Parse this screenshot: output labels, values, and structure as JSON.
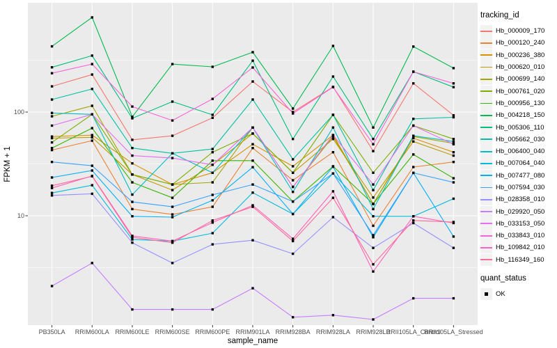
{
  "chart_data": {
    "type": "line",
    "title": "",
    "xlabel": "sample_name",
    "ylabel": "FPKM + 1",
    "y_scale": "log10",
    "ylim": [
      0.88,
      1100
    ],
    "y_ticks": [
      10,
      100
    ],
    "y_tick_labels": [
      "10",
      "100"
    ],
    "y_minor_gridlines": [
      3.1623,
      31.623,
      316.23
    ],
    "categories": [
      "PB350LA",
      "RRIM600LA",
      "RRIM600LE",
      "RRIM600SE",
      "RRIM600PE",
      "RRIM901LA",
      "RRIM928BA",
      "RRIM928LA",
      "RRIM928LB",
      "RRII105LA_Control",
      "RRII105LA_Stressed"
    ],
    "legend_title": "tracking_id",
    "legend_position": "right",
    "panel_bg": "#EBEBEB",
    "grid_color": "#FFFFFF",
    "axis_text_color": "#4D4D4D",
    "tick_color": "#333333",
    "point_marker": "black-square",
    "series": [
      {
        "name": "Hb_000009_170",
        "color": "#F8766D",
        "values": [
          177,
          230,
          54,
          59,
          88,
          197,
          100,
          175,
          42,
          189,
          93
        ]
      },
      {
        "name": "Hb_000120_240",
        "color": "#EA8331",
        "values": [
          43,
          53,
          11.6,
          10.3,
          12.2,
          45,
          22,
          41,
          8,
          29.5,
          33
        ]
      },
      {
        "name": "Hb_000236_380",
        "color": "#D89000",
        "values": [
          58,
          60,
          32,
          20,
          26,
          49,
          30,
          60,
          13,
          56,
          41
        ]
      },
      {
        "name": "Hb_000620_010",
        "color": "#C09B00",
        "values": [
          56,
          57,
          25,
          17.7,
          31,
          62,
          26,
          55,
          15,
          52,
          38
        ]
      },
      {
        "name": "Hb_000699_140",
        "color": "#A3A500",
        "values": [
          91,
          115,
          25,
          20,
          21,
          71,
          19,
          58,
          13,
          58,
          50
        ]
      },
      {
        "name": "Hb_000761_020",
        "color": "#7CAE00",
        "values": [
          51,
          95,
          25,
          20,
          41,
          62,
          26,
          94,
          26,
          74,
          55
        ]
      },
      {
        "name": "Hb_000956_130",
        "color": "#39B600",
        "values": [
          45,
          70,
          21,
          14.9,
          34,
          34,
          13.7,
          30,
          13,
          39,
          23
        ]
      },
      {
        "name": "Hb_004218_150",
        "color": "#00BB4E",
        "values": [
          430,
          818,
          90,
          290,
          273,
          378,
          108,
          434,
          71,
          428,
          265
        ]
      },
      {
        "name": "Hb_005306_110",
        "color": "#00BF7D",
        "values": [
          270,
          350,
          87,
          126,
          94,
          313,
          55,
          220,
          55,
          245,
          174
        ]
      },
      {
        "name": "Hb_005662_030",
        "color": "#00C1A3",
        "values": [
          132,
          167,
          45,
          40,
          44,
          132,
          35,
          94,
          17.7,
          86,
          89
        ]
      },
      {
        "name": "Hb_006400_040",
        "color": "#00BFC4",
        "values": [
          98,
          95,
          16,
          40,
          26,
          71,
          17,
          71,
          11.6,
          59,
          52
        ]
      },
      {
        "name": "Hb_007064_040",
        "color": "#00BBDA",
        "values": [
          16.6,
          19.7,
          5.9,
          5.7,
          6.8,
          16.7,
          10.4,
          25.6,
          9.9,
          9.9,
          14.6
        ]
      },
      {
        "name": "Hb_007477_080",
        "color": "#00B0F6",
        "values": [
          23.4,
          27.3,
          9.9,
          9.7,
          14.1,
          29.4,
          10.4,
          29.7,
          6.2,
          25.9,
          6.3
        ]
      },
      {
        "name": "Hb_007594_030",
        "color": "#35A2FF",
        "values": [
          33,
          30.4,
          13.6,
          12.2,
          15.9,
          20,
          13.7,
          25.6,
          6.5,
          25.9,
          21
        ]
      },
      {
        "name": "Hb_028358_010",
        "color": "#9590FF",
        "values": [
          15.7,
          16.3,
          5.5,
          3.5,
          5.3,
          5.8,
          4.3,
          9.7,
          4.9,
          8.5,
          4.9
        ]
      },
      {
        "name": "Hb_029920_050",
        "color": "#C77CFF",
        "values": [
          2.1,
          3.5,
          1.25,
          1.25,
          1.25,
          2,
          1.05,
          1.1,
          1,
          1.6,
          1.6
        ]
      },
      {
        "name": "Hb_033153_050",
        "color": "#E76BF3",
        "values": [
          74,
          95,
          38,
          36,
          31,
          71,
          19,
          60,
          20,
          74,
          49
        ]
      },
      {
        "name": "Hb_033843_010",
        "color": "#FA62DB",
        "values": [
          237,
          290,
          113,
          83,
          134,
          269,
          97,
          174,
          49,
          245,
          189
        ]
      },
      {
        "name": "Hb_109842_010",
        "color": "#FF62BC",
        "values": [
          18.5,
          24.2,
          6.4,
          5.7,
          8.6,
          12.6,
          6,
          17.2,
          2.9,
          9.9,
          8.5
        ]
      },
      {
        "name": "Hb_116349_160",
        "color": "#FF6A98",
        "values": [
          19.5,
          24,
          6.2,
          5.5,
          9,
          12.2,
          5.7,
          14.9,
          3.4,
          9,
          8.7
        ]
      }
    ],
    "quant_legend": {
      "title": "quant_status",
      "items": [
        {
          "label": "OK",
          "marker": "black-square"
        }
      ]
    }
  }
}
